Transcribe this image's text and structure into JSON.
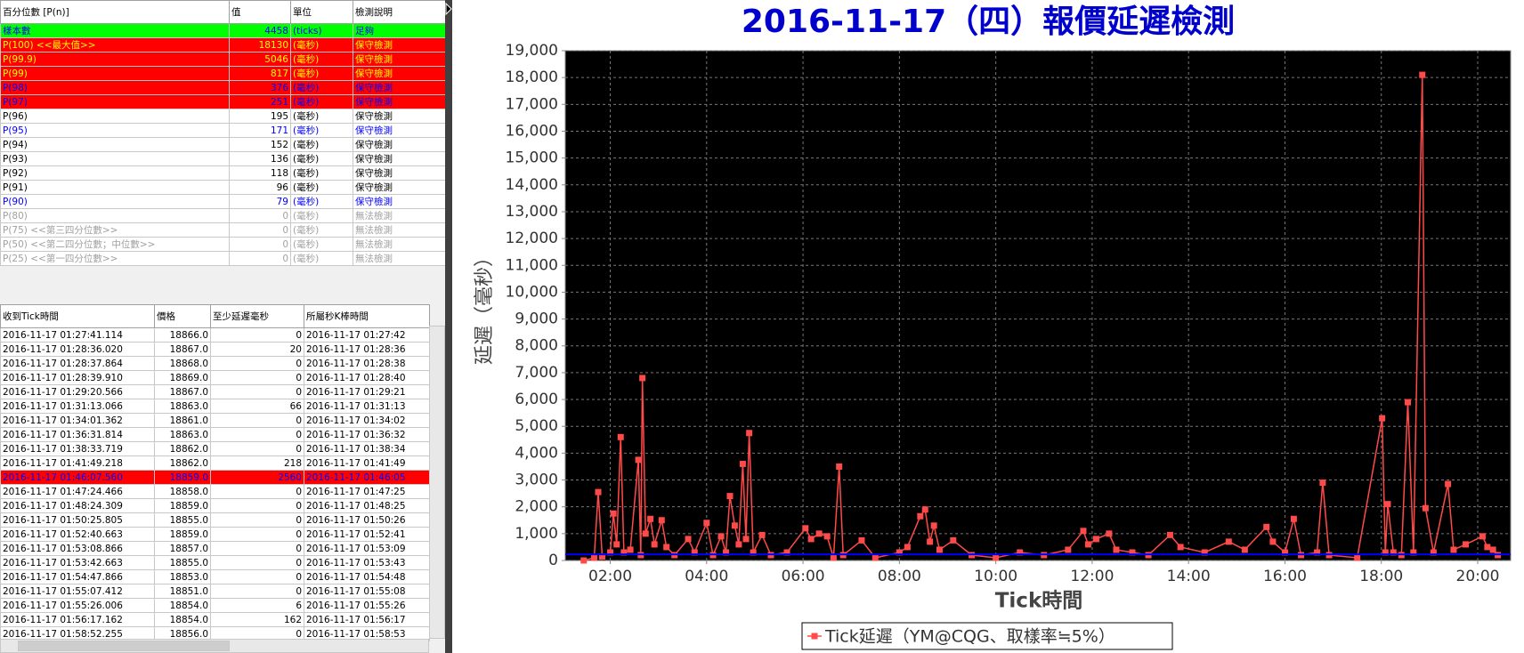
{
  "percentile_table": {
    "columns": [
      "百分位數 [P(n)]",
      "值",
      "單位",
      "檢測說明"
    ],
    "rows": [
      {
        "cells": [
          "樣本數",
          4458,
          "(ticks)",
          "足夠"
        ],
        "bg": "#00ff00",
        "color": "#0000ff"
      },
      {
        "cells": [
          "P(100) <<最大值>>",
          18130,
          "(毫秒)",
          "保守檢測"
        ],
        "bg": "#ff0000",
        "color": "#ffff00"
      },
      {
        "cells": [
          "P(99.9)",
          5046,
          "(毫秒)",
          "保守檢測"
        ],
        "bg": "#ff0000",
        "color": "#ffff00"
      },
      {
        "cells": [
          "P(99)",
          817,
          "(毫秒)",
          "保守檢測"
        ],
        "bg": "#ff0000",
        "color": "#ffff00"
      },
      {
        "cells": [
          "P(98)",
          376,
          "(毫秒)",
          "保守檢測"
        ],
        "bg": "#ff0000",
        "color": "#0000ff"
      },
      {
        "cells": [
          "P(97)",
          251,
          "(毫秒)",
          "保守檢測"
        ],
        "bg": "#ff0000",
        "color": "#0000ff"
      },
      {
        "cells": [
          "P(96)",
          195,
          "(毫秒)",
          "保守檢測"
        ],
        "bg": "#ffffff",
        "color": "#000000"
      },
      {
        "cells": [
          "P(95)",
          171,
          "(毫秒)",
          "保守檢測"
        ],
        "bg": "#ffffff",
        "color": "#0000ff"
      },
      {
        "cells": [
          "P(94)",
          152,
          "(毫秒)",
          "保守檢測"
        ],
        "bg": "#ffffff",
        "color": "#000000"
      },
      {
        "cells": [
          "P(93)",
          136,
          "(毫秒)",
          "保守檢測"
        ],
        "bg": "#ffffff",
        "color": "#000000"
      },
      {
        "cells": [
          "P(92)",
          118,
          "(毫秒)",
          "保守檢測"
        ],
        "bg": "#ffffff",
        "color": "#000000"
      },
      {
        "cells": [
          "P(91)",
          96,
          "(毫秒)",
          "保守檢測"
        ],
        "bg": "#ffffff",
        "color": "#000000"
      },
      {
        "cells": [
          "P(90)",
          79,
          "(毫秒)",
          "保守檢測"
        ],
        "bg": "#ffffff",
        "color": "#0000ff"
      },
      {
        "cells": [
          "P(80)",
          0,
          "(毫秒)",
          "無法檢測"
        ],
        "bg": "#ffffff",
        "color": "#a0a0a0"
      },
      {
        "cells": [
          "P(75) <<第三四分位數>>",
          0,
          "(毫秒)",
          "無法檢測"
        ],
        "bg": "#ffffff",
        "color": "#a0a0a0"
      },
      {
        "cells": [
          "P(50) <<第二四分位數；中位數>>",
          0,
          "(毫秒)",
          "無法檢測"
        ],
        "bg": "#ffffff",
        "color": "#a0a0a0"
      },
      {
        "cells": [
          "P(25) <<第一四分位數>>",
          0,
          "(毫秒)",
          "無法檢測"
        ],
        "bg": "#ffffff",
        "color": "#a0a0a0"
      }
    ]
  },
  "tick_table": {
    "columns": [
      "收到Tick時間",
      "價格",
      "至少延遲毫秒",
      "所屬秒K棒時間"
    ],
    "rows": [
      {
        "cells": [
          "2016-11-17 01:27:41.114",
          "18866.0",
          0,
          "2016-11-17 01:27:42"
        ]
      },
      {
        "cells": [
          "2016-11-17 01:28:36.020",
          "18867.0",
          20,
          "2016-11-17 01:28:36"
        ]
      },
      {
        "cells": [
          "2016-11-17 01:28:37.864",
          "18868.0",
          0,
          "2016-11-17 01:28:38"
        ]
      },
      {
        "cells": [
          "2016-11-17 01:28:39.910",
          "18869.0",
          0,
          "2016-11-17 01:28:40"
        ]
      },
      {
        "cells": [
          "2016-11-17 01:29:20.566",
          "18867.0",
          0,
          "2016-11-17 01:29:21"
        ]
      },
      {
        "cells": [
          "2016-11-17 01:31:13.066",
          "18863.0",
          66,
          "2016-11-17 01:31:13"
        ]
      },
      {
        "cells": [
          "2016-11-17 01:34:01.362",
          "18861.0",
          0,
          "2016-11-17 01:34:02"
        ]
      },
      {
        "cells": [
          "2016-11-17 01:36:31.814",
          "18863.0",
          0,
          "2016-11-17 01:36:32"
        ]
      },
      {
        "cells": [
          "2016-11-17 01:38:33.719",
          "18862.0",
          0,
          "2016-11-17 01:38:34"
        ]
      },
      {
        "cells": [
          "2016-11-17 01:41:49.218",
          "18862.0",
          218,
          "2016-11-17 01:41:49"
        ]
      },
      {
        "cells": [
          "2016-11-17 01:46:07.560",
          "18859.0",
          2560,
          "2016-11-17 01:46:05"
        ],
        "bg": "#ff0000",
        "color": "#0000ff"
      },
      {
        "cells": [
          "2016-11-17 01:47:24.466",
          "18858.0",
          0,
          "2016-11-17 01:47:25"
        ]
      },
      {
        "cells": [
          "2016-11-17 01:48:24.309",
          "18859.0",
          0,
          "2016-11-17 01:48:25"
        ]
      },
      {
        "cells": [
          "2016-11-17 01:50:25.805",
          "18855.0",
          0,
          "2016-11-17 01:50:26"
        ]
      },
      {
        "cells": [
          "2016-11-17 01:52:40.663",
          "18859.0",
          0,
          "2016-11-17 01:52:41"
        ]
      },
      {
        "cells": [
          "2016-11-17 01:53:08.866",
          "18857.0",
          0,
          "2016-11-17 01:53:09"
        ]
      },
      {
        "cells": [
          "2016-11-17 01:53:42.663",
          "18855.0",
          0,
          "2016-11-17 01:53:43"
        ]
      },
      {
        "cells": [
          "2016-11-17 01:54:47.866",
          "18853.0",
          0,
          "2016-11-17 01:54:48"
        ]
      },
      {
        "cells": [
          "2016-11-17 01:55:07.412",
          "18851.0",
          0,
          "2016-11-17 01:55:08"
        ]
      },
      {
        "cells": [
          "2016-11-17 01:55:26.006",
          "18854.0",
          6,
          "2016-11-17 01:55:26"
        ]
      },
      {
        "cells": [
          "2016-11-17 01:56:17.162",
          "18854.0",
          162,
          "2016-11-17 01:56:17"
        ]
      },
      {
        "cells": [
          "2016-11-17 01:58:52.255",
          "18856.0",
          0,
          "2016-11-17 01:58:53"
        ]
      }
    ]
  },
  "chart_data": {
    "type": "line",
    "title": "2016-11-17（四）報價延遲檢測",
    "x_label": "Tick時間",
    "y_label": "延遲（毫秒）",
    "x": [
      "01:27",
      "01:40",
      "01:45",
      "01:50",
      "02:00",
      "02:04",
      "02:08",
      "02:13",
      "02:17",
      "02:25",
      "02:35",
      "02:38",
      "02:40",
      "02:44",
      "02:50",
      "02:55",
      "03:04",
      "03:10",
      "03:20",
      "03:37",
      "03:45",
      "04:00",
      "04:08",
      "04:18",
      "04:24",
      "04:29",
      "04:35",
      "04:40",
      "04:45",
      "04:49",
      "04:53",
      "04:58",
      "05:09",
      "05:20",
      "05:40",
      "06:03",
      "06:10",
      "06:20",
      "06:30",
      "06:38",
      "06:45",
      "06:50",
      "07:13",
      "07:30",
      "08:00",
      "08:10",
      "08:26",
      "08:32",
      "08:38",
      "08:43",
      "08:50",
      "09:07",
      "09:30",
      "10:00",
      "10:30",
      "11:00",
      "11:30",
      "11:49",
      "11:55",
      "12:05",
      "12:21",
      "12:30",
      "12:50",
      "13:10",
      "13:37",
      "13:50",
      "14:20",
      "14:50",
      "15:10",
      "15:37",
      "15:45",
      "16:00",
      "16:11",
      "16:20",
      "16:40",
      "16:47",
      "16:55",
      "17:30",
      "18:01",
      "18:05",
      "18:08",
      "18:15",
      "18:25",
      "18:33",
      "18:40",
      "18:51",
      "18:55",
      "19:05",
      "19:23",
      "19:30",
      "19:45",
      "20:06",
      "20:12",
      "20:19",
      "20:25"
    ],
    "series": [
      {
        "name": "Tick延遲（YM@CQG、取樣率≒5%）",
        "color": "#ff4a4a",
        "values": [
          0,
          100,
          2550,
          150,
          300,
          1750,
          600,
          4600,
          300,
          400,
          3750,
          200,
          6800,
          1000,
          1550,
          600,
          1500,
          500,
          200,
          800,
          300,
          1400,
          200,
          900,
          300,
          2400,
          1300,
          600,
          3600,
          800,
          4750,
          300,
          950,
          200,
          300,
          1200,
          800,
          1000,
          900,
          100,
          3500,
          200,
          750,
          100,
          300,
          500,
          1650,
          1900,
          700,
          1300,
          400,
          750,
          200,
          100,
          300,
          200,
          400,
          1100,
          600,
          800,
          1000,
          400,
          300,
          200,
          950,
          500,
          300,
          700,
          400,
          1250,
          700,
          300,
          1550,
          200,
          300,
          2900,
          200,
          100,
          5300,
          300,
          2100,
          300,
          200,
          5900,
          300,
          18100,
          1950,
          300,
          2850,
          400,
          600,
          900,
          500,
          400,
          200
        ]
      }
    ],
    "hline": {
      "value": 230,
      "color": "#0000ff"
    },
    "xlim": [
      "01:04",
      "20:41"
    ],
    "xticks": [
      "02:00",
      "04:00",
      "06:00",
      "08:00",
      "10:00",
      "12:00",
      "14:00",
      "16:00",
      "18:00",
      "20:00"
    ],
    "ylim": [
      0,
      19000
    ],
    "yticks": [
      0,
      {
        "value": 1000,
        "label": "1,000"
      },
      {
        "value": 2000,
        "label": "2,000"
      },
      {
        "value": 3000,
        "label": "3,000"
      },
      {
        "value": 4000,
        "label": "4,000"
      },
      {
        "value": 5000,
        "label": "5,000"
      },
      {
        "value": 6000,
        "label": "6,000"
      },
      {
        "value": 7000,
        "label": "7,000"
      },
      {
        "value": 8000,
        "label": "8,000"
      },
      {
        "value": 9000,
        "label": "9,000"
      },
      {
        "value": 10000,
        "label": "10,000"
      },
      {
        "value": 11000,
        "label": "11,000"
      },
      {
        "value": 12000,
        "label": "12,000"
      },
      {
        "value": 13000,
        "label": "13,000"
      },
      {
        "value": 14000,
        "label": "14,000"
      },
      {
        "value": 15000,
        "label": "15,000"
      },
      {
        "value": 16000,
        "label": "16,000"
      },
      {
        "value": 17000,
        "label": "17,000"
      },
      {
        "value": 18000,
        "label": "18,000"
      },
      {
        "value": 19000,
        "label": "19,000"
      }
    ],
    "grid": true,
    "plot_background": "#000000",
    "legend": "bottom"
  }
}
